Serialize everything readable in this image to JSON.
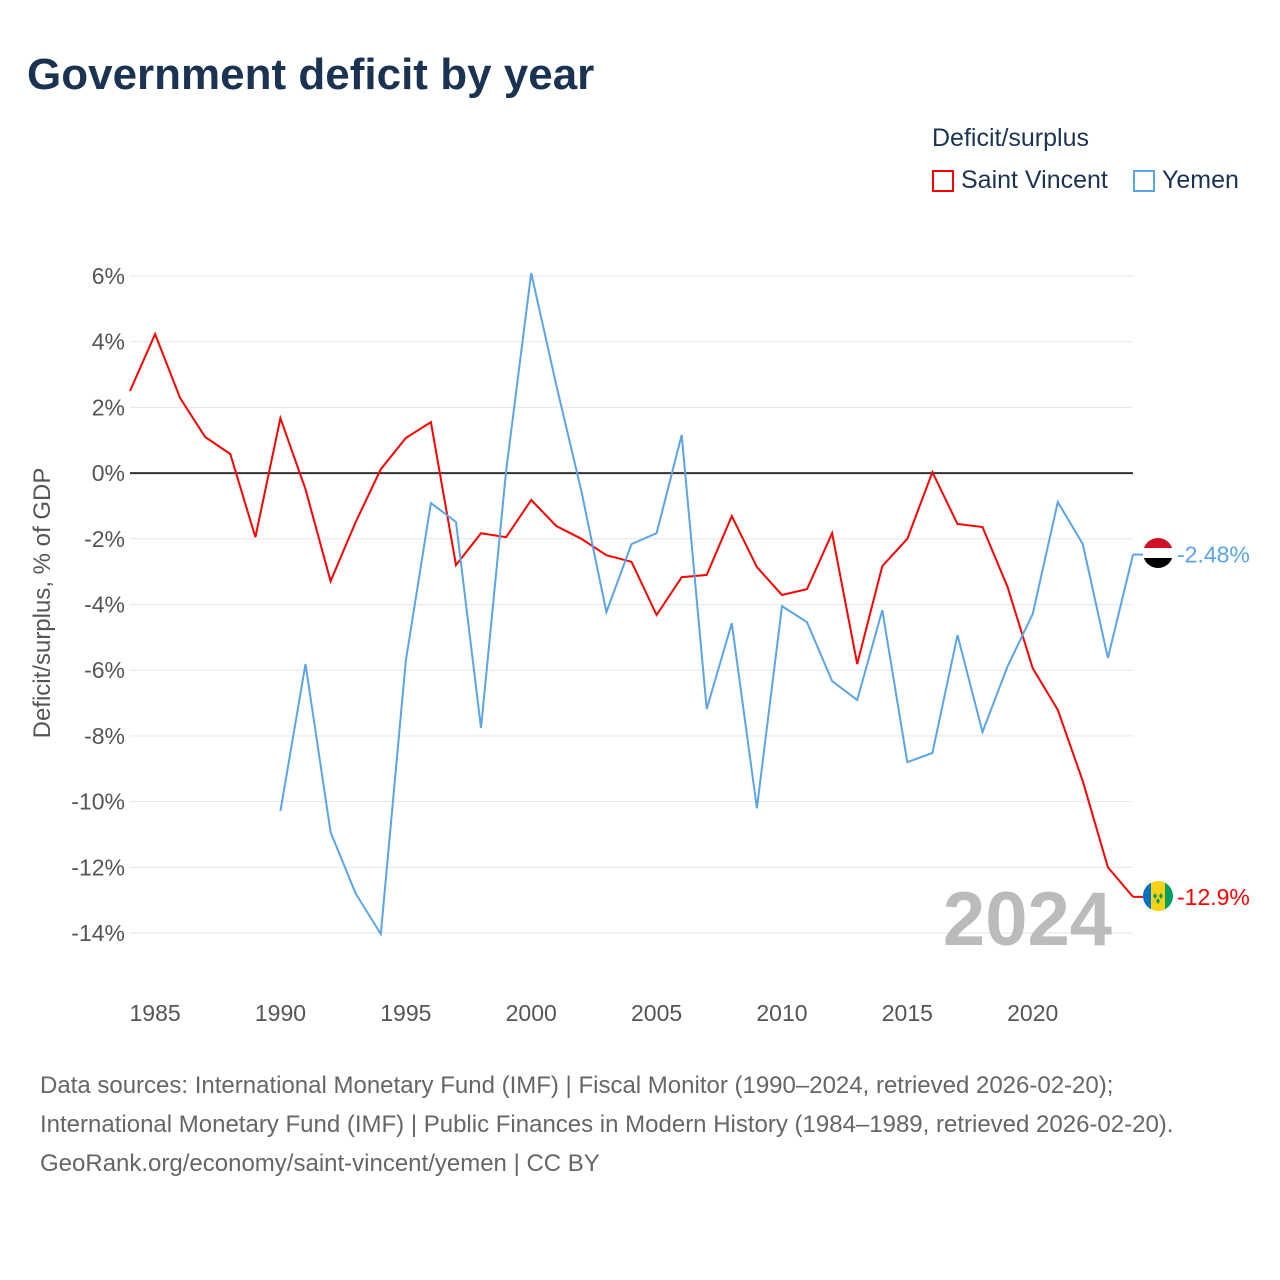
{
  "title": "Government deficit by year",
  "legend": {
    "title": "Deficit/surplus",
    "items": [
      {
        "label": "Saint Vincent",
        "color": "#ff0000"
      },
      {
        "label": "Yemen",
        "color": "#5aa5e8"
      }
    ]
  },
  "year_watermark": "2024",
  "footer": {
    "sources": "Data sources: International Monetary Fund (IMF) | Fiscal Monitor (1990–2024, retrieved 2026-02-20); International Monetary Fund (IMF) | Public Finances in Modern History (1984–1989, retrieved 2026-02-20).",
    "credit": "GeoRank.org/economy/saint-vincent/yemen | CC BY"
  },
  "chart_data": {
    "type": "line",
    "title": "Government deficit by year",
    "xlabel": "",
    "ylabel": "Deficit/surplus, % of GDP",
    "xlim": [
      1984,
      2024
    ],
    "ylim": [
      -14,
      6
    ],
    "x_ticks": [
      1985,
      1990,
      1995,
      2000,
      2005,
      2010,
      2015,
      2020
    ],
    "y_ticks": [
      6,
      4,
      2,
      0,
      -2,
      -4,
      -6,
      -8,
      -10,
      -12,
      -14
    ],
    "y_tick_labels": [
      "6%",
      "4%",
      "2%",
      "0%",
      "-2%",
      "-4%",
      "-6%",
      "-8%",
      "-10%",
      "-12%",
      "-14%"
    ],
    "grid": true,
    "legend_position": "top-right",
    "series": [
      {
        "name": "Saint Vincent",
        "color": "#ff0000",
        "end_label": "-12.9%",
        "x": [
          1984,
          1985,
          1986,
          1987,
          1988,
          1989,
          1990,
          1991,
          1992,
          1993,
          1994,
          1995,
          1996,
          1997,
          1998,
          1999,
          2000,
          2001,
          2002,
          2003,
          2004,
          2005,
          2006,
          2007,
          2008,
          2009,
          2010,
          2011,
          2012,
          2013,
          2014,
          2015,
          2016,
          2017,
          2018,
          2019,
          2020,
          2021,
          2022,
          2023,
          2024
        ],
        "values": [
          2.5,
          4.23,
          2.28,
          1.1,
          0.58,
          -1.95,
          1.67,
          -0.49,
          -3.29,
          -1.49,
          0.12,
          1.07,
          1.55,
          -2.8,
          -1.83,
          -1.95,
          -0.82,
          -1.61,
          -2.0,
          -2.5,
          -2.7,
          -4.32,
          -3.17,
          -3.1,
          -1.31,
          -2.86,
          -3.71,
          -3.53,
          -1.83,
          -5.81,
          -2.83,
          -2.0,
          0.03,
          -1.55,
          -1.64,
          -3.47,
          -5.94,
          -7.21,
          -9.38,
          -12.0,
          -12.9
        ]
      },
      {
        "name": "Yemen",
        "color": "#5aa5e8",
        "end_label": "-2.48%",
        "x": [
          1990,
          1991,
          1992,
          1993,
          1994,
          1995,
          1996,
          1997,
          1998,
          1999,
          2000,
          2001,
          2002,
          2003,
          2004,
          2005,
          2006,
          2007,
          2008,
          2009,
          2010,
          2011,
          2012,
          2013,
          2014,
          2015,
          2016,
          2017,
          2018,
          2019,
          2020,
          2021,
          2022,
          2023,
          2024
        ],
        "values": [
          -10.29,
          -5.81,
          -10.93,
          -12.8,
          -14.03,
          -5.72,
          -0.91,
          -1.49,
          -7.76,
          0.06,
          6.09,
          2.68,
          -0.55,
          -4.23,
          -2.16,
          -1.83,
          1.16,
          -7.18,
          -4.57,
          -10.2,
          -4.05,
          -4.54,
          -6.33,
          -6.91,
          -4.17,
          -8.8,
          -8.52,
          -4.93,
          -7.88,
          -5.88,
          -4.29,
          -0.88,
          -2.16,
          -5.63,
          -2.48
        ]
      }
    ]
  }
}
